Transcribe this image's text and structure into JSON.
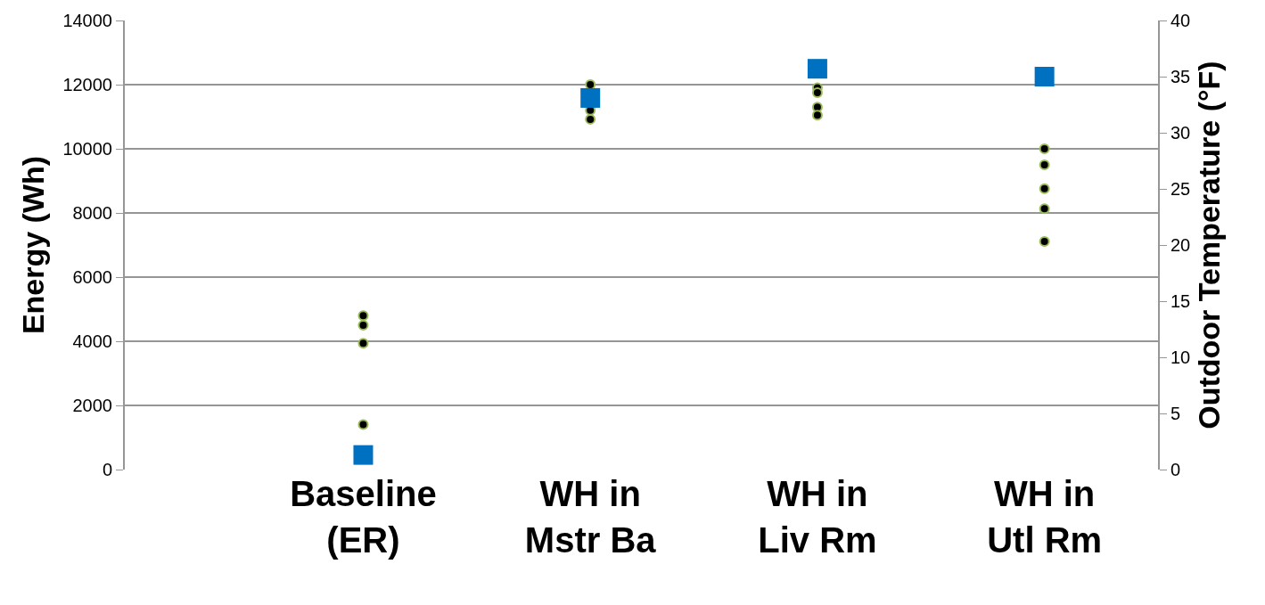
{
  "chart_data": {
    "type": "scatter",
    "ylabel": "Energy (Wh)",
    "y2label": "Outdoor Temperature (°F)",
    "categories": [
      "Baseline\n(ER)",
      "WH in\nMstr Ba",
      "WH in\nLiv Rm",
      "WH in\nUtl Rm"
    ],
    "series": [
      {
        "color": "#000000",
        "marker": "circle",
        "x": [
          "Baseline\n(ER)",
          "Baseline\n(ER)",
          "Baseline\n(ER)",
          "Baseline\n(ER)",
          "WH in\nMstr Ba",
          "WH in\nMstr Ba",
          "WH in\nMstr Ba",
          "WH in\nLiv Rm",
          "WH in\nLiv Rm",
          "WH in\nLiv Rm",
          "WH in\nLiv Rm",
          "WH in\nUtl Rm",
          "WH in\nUtl Rm",
          "WH in\nUtl Rm",
          "WH in\nUtl Rm",
          "WH in\nUtl Rm"
        ],
        "values": [
          4800,
          4500,
          3940,
          1400,
          12000,
          11200,
          10920,
          11900,
          11750,
          11300,
          11050,
          10000,
          9500,
          8760,
          8130,
          7110
        ]
      },
      {
        "color": "#0070c0",
        "marker": "square",
        "axis": "y2",
        "values": [
          1.3,
          33.1,
          35.7,
          35.0
        ]
      }
    ],
    "ylim": [
      0,
      14000
    ],
    "yticks": [
      0,
      2000,
      4000,
      6000,
      8000,
      10000,
      12000,
      14000
    ],
    "y2lim": [
      0,
      40
    ],
    "y2ticks": [
      0,
      5,
      10,
      15,
      20,
      25,
      30,
      35,
      40
    ],
    "grid": "y"
  }
}
